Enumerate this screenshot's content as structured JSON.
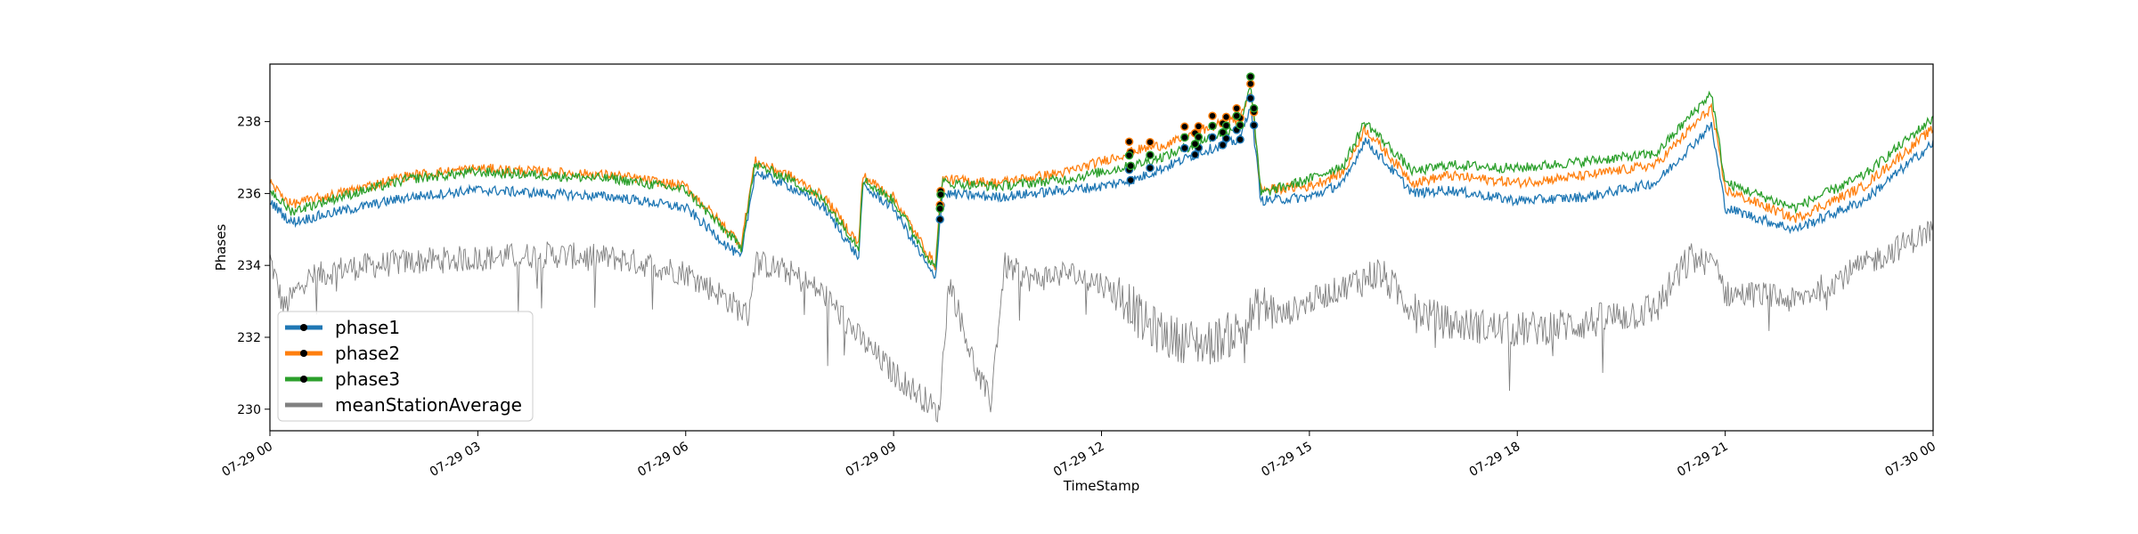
{
  "chart_data": {
    "type": "line",
    "xlabel": "TimeStamp",
    "ylabel": "Phases",
    "xlim": [
      "07-29 00:00",
      "07-30 00:00"
    ],
    "ylim": [
      229.4,
      239.6
    ],
    "grid": false,
    "legend_position": "lower-left",
    "x_tick_labels": [
      "07-29 00",
      "07-29 03",
      "07-29 06",
      "07-29 09",
      "07-29 12",
      "07-29 15",
      "07-29 18",
      "07-29 21",
      "07-30 00"
    ],
    "y_tick_labels": [
      "230",
      "232",
      "234",
      "236",
      "238"
    ],
    "series": [
      {
        "name": "phase1",
        "color": "#1f77b4",
        "x_hours": [
          0,
          0.3,
          1,
          2,
          3,
          4,
          5,
          6,
          6.8,
          7.0,
          7.5,
          8.0,
          8.5,
          8.55,
          9,
          9.6,
          9.7,
          10.5,
          11.5,
          12,
          12.5,
          13,
          13.5,
          14,
          14.15,
          14.3,
          15,
          15.5,
          15.8,
          16.5,
          17,
          18,
          19,
          20,
          20.8,
          21,
          22,
          23,
          24
        ],
        "values": [
          235.8,
          235.2,
          235.5,
          235.9,
          236.1,
          236.0,
          235.9,
          235.6,
          234.2,
          236.6,
          236.2,
          235.6,
          234.2,
          236.2,
          235.6,
          233.6,
          236.0,
          235.9,
          236.1,
          236.2,
          236.4,
          236.8,
          237.2,
          237.5,
          238.5,
          235.8,
          235.9,
          236.3,
          237.5,
          236.0,
          236.1,
          235.8,
          235.9,
          236.3,
          237.9,
          235.6,
          235.0,
          235.8,
          237.4
        ]
      },
      {
        "name": "phase2",
        "color": "#ff7f0e",
        "x_hours": [
          0,
          0.3,
          1,
          2,
          3,
          4,
          5,
          6,
          6.8,
          7.0,
          7.5,
          8.0,
          8.5,
          8.55,
          9,
          9.6,
          9.7,
          10.5,
          11.5,
          12,
          12.5,
          13,
          13.5,
          14,
          14.15,
          14.3,
          15,
          15.5,
          15.8,
          16.5,
          17,
          18,
          19,
          20,
          20.8,
          21,
          22,
          23,
          24
        ],
        "values": [
          236.3,
          235.7,
          236.0,
          236.5,
          236.7,
          236.6,
          236.5,
          236.2,
          234.6,
          236.9,
          236.5,
          235.9,
          234.6,
          236.5,
          235.9,
          234.0,
          236.4,
          236.3,
          236.6,
          236.9,
          237.2,
          237.4,
          237.8,
          238.1,
          238.9,
          236.1,
          236.2,
          236.6,
          237.8,
          236.3,
          236.5,
          236.3,
          236.5,
          236.8,
          238.4,
          236.1,
          235.3,
          236.2,
          237.8
        ]
      },
      {
        "name": "phase3",
        "color": "#2ca02c",
        "x_hours": [
          0,
          0.3,
          1,
          2,
          3,
          4,
          5,
          6,
          6.8,
          7.0,
          7.5,
          8.0,
          8.5,
          8.55,
          9,
          9.6,
          9.7,
          10.5,
          11.5,
          12,
          12.5,
          13,
          13.5,
          14,
          14.15,
          14.3,
          15,
          15.5,
          15.8,
          16.5,
          17,
          18,
          19,
          20,
          20.8,
          21,
          22,
          23,
          24
        ],
        "values": [
          236.1,
          235.5,
          235.9,
          236.4,
          236.6,
          236.5,
          236.4,
          236.1,
          234.5,
          236.8,
          236.4,
          235.8,
          234.5,
          236.4,
          235.8,
          233.9,
          236.3,
          236.2,
          236.4,
          236.6,
          236.8,
          237.1,
          237.5,
          237.9,
          239.1,
          236.0,
          236.4,
          236.8,
          238.0,
          236.6,
          236.8,
          236.7,
          236.9,
          237.1,
          238.8,
          236.3,
          235.6,
          236.5,
          238.1
        ]
      },
      {
        "name": "meanStationAverage",
        "color": "#808080",
        "x_hours": [
          0,
          0.2,
          0.5,
          1,
          2,
          3,
          4,
          5,
          6,
          6.5,
          6.9,
          7.0,
          7.5,
          8.0,
          8.5,
          9.0,
          9.5,
          9.65,
          9.8,
          10.2,
          10.4,
          10.6,
          11,
          11.5,
          12,
          12.4,
          12.6,
          13,
          13.5,
          14,
          14.3,
          14.6,
          15,
          15.5,
          16,
          16.5,
          17,
          18,
          19,
          20,
          20.5,
          20.9,
          21,
          21.5,
          22,
          23,
          24
        ],
        "values": [
          234.2,
          232.8,
          233.6,
          233.9,
          234.1,
          234.2,
          234.3,
          234.2,
          233.8,
          233.2,
          232.6,
          234.1,
          233.8,
          233.2,
          232.0,
          231.0,
          230.2,
          229.8,
          233.6,
          231.0,
          230.2,
          234.0,
          233.6,
          233.8,
          233.5,
          233.0,
          232.4,
          232.0,
          231.8,
          232.2,
          232.9,
          232.6,
          233.0,
          233.4,
          233.8,
          232.8,
          232.4,
          232.2,
          232.4,
          232.8,
          234.2,
          234.0,
          233.2,
          233.2,
          233.0,
          234.0,
          235.0
        ]
      }
    ]
  }
}
